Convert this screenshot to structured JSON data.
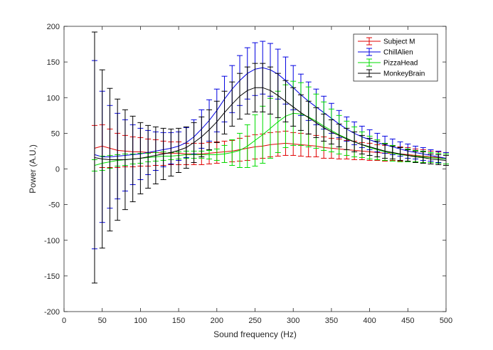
{
  "chart_data": {
    "type": "line",
    "title": "",
    "xlabel": "Sound frequency (Hz)",
    "ylabel": "Power (A.U.)",
    "xlim": [
      0,
      500
    ],
    "ylim": [
      -200,
      200
    ],
    "xticks": [
      0,
      50,
      100,
      150,
      200,
      250,
      300,
      350,
      400,
      450,
      500
    ],
    "yticks": [
      -200,
      -150,
      -100,
      -50,
      0,
      50,
      100,
      150,
      200
    ],
    "grid": false,
    "legend_position": "top-right",
    "error_bars": true,
    "x": [
      40,
      50,
      60,
      70,
      80,
      90,
      100,
      110,
      120,
      130,
      140,
      150,
      160,
      170,
      180,
      190,
      200,
      210,
      220,
      230,
      240,
      250,
      260,
      270,
      280,
      290,
      300,
      310,
      320,
      330,
      340,
      350,
      360,
      370,
      380,
      390,
      400,
      410,
      420,
      430,
      440,
      450,
      460,
      470,
      480,
      490,
      500
    ],
    "series": [
      {
        "name": "Subject M",
        "color": "#e00000",
        "values": [
          29,
          32,
          29,
          26,
          25,
          24,
          24,
          23,
          23,
          22,
          22,
          22,
          21,
          21,
          21,
          22,
          23,
          24,
          25,
          27,
          29,
          31,
          32,
          34,
          35,
          36,
          35,
          34,
          33,
          32,
          30,
          29,
          28,
          27,
          26,
          25,
          24,
          23,
          22,
          22,
          21,
          20,
          19,
          18,
          17,
          16,
          15
        ],
        "errors": [
          32,
          30,
          27,
          24,
          22,
          21,
          20,
          19,
          18,
          17,
          16,
          16,
          15,
          15,
          15,
          15,
          15,
          15,
          15,
          16,
          17,
          17,
          17,
          17,
          17,
          17,
          16,
          16,
          16,
          15,
          15,
          14,
          14,
          13,
          13,
          12,
          12,
          11,
          11,
          10,
          10,
          10,
          9,
          9,
          8,
          8,
          8
        ]
      },
      {
        "name": "ChillAlien",
        "color": "#0000e0",
        "values": [
          20,
          17,
          17,
          18,
          19,
          20,
          21,
          23,
          25,
          27,
          29,
          32,
          37,
          45,
          56,
          68,
          82,
          98,
          112,
          124,
          134,
          140,
          142,
          139,
          133,
          124,
          114,
          104,
          95,
          87,
          79,
          71,
          63,
          56,
          50,
          45,
          41,
          37,
          34,
          31,
          28,
          25,
          23,
          21,
          19,
          17,
          15
        ],
        "errors": [
          132,
          92,
          72,
          60,
          50,
          42,
          36,
          31,
          27,
          24,
          22,
          20,
          21,
          24,
          27,
          29,
          30,
          32,
          33,
          35,
          36,
          37,
          37,
          37,
          35,
          33,
          31,
          29,
          27,
          25,
          23,
          21,
          19,
          17,
          16,
          15,
          14,
          13,
          12,
          11,
          10,
          10,
          9,
          9,
          8,
          8,
          8
        ]
      },
      {
        "name": "PizzaHead",
        "color": "#00dd00",
        "values": [
          5,
          8,
          10,
          12,
          13,
          14,
          15,
          16,
          17,
          18,
          18,
          19,
          20,
          20,
          20,
          20,
          20,
          21,
          23,
          26,
          32,
          40,
          48,
          57,
          66,
          74,
          78,
          77,
          73,
          67,
          60,
          54,
          48,
          43,
          38,
          34,
          30,
          27,
          24,
          22,
          20,
          19,
          18,
          17,
          16,
          15,
          14
        ],
        "errors": [
          8,
          10,
          9,
          8,
          8,
          7,
          7,
          6,
          6,
          6,
          5,
          5,
          5,
          5,
          5,
          6,
          8,
          12,
          18,
          24,
          30,
          36,
          40,
          42,
          43,
          44,
          45,
          44,
          42,
          38,
          34,
          30,
          27,
          24,
          21,
          18,
          16,
          14,
          12,
          11,
          10,
          9,
          8,
          8,
          7,
          7,
          7
        ]
      },
      {
        "name": "MonkeyBrain",
        "color": "#000000",
        "values": [
          16,
          14,
          13,
          13,
          13,
          14,
          15,
          17,
          19,
          21,
          23,
          26,
          30,
          37,
          45,
          55,
          66,
          79,
          91,
          102,
          110,
          114,
          114,
          110,
          103,
          95,
          87,
          79,
          72,
          65,
          58,
          52,
          47,
          42,
          38,
          34,
          31,
          28,
          25,
          23,
          21,
          19,
          17,
          16,
          14,
          13,
          12
        ],
        "errors": [
          176,
          125,
          100,
          85,
          70,
          60,
          50,
          44,
          40,
          36,
          33,
          31,
          29,
          28,
          28,
          28,
          29,
          30,
          31,
          32,
          33,
          34,
          34,
          33,
          31,
          29,
          27,
          25,
          23,
          21,
          19,
          17,
          16,
          15,
          14,
          13,
          12,
          11,
          10,
          9,
          9,
          8,
          8,
          8,
          7,
          7,
          7
        ]
      }
    ]
  }
}
